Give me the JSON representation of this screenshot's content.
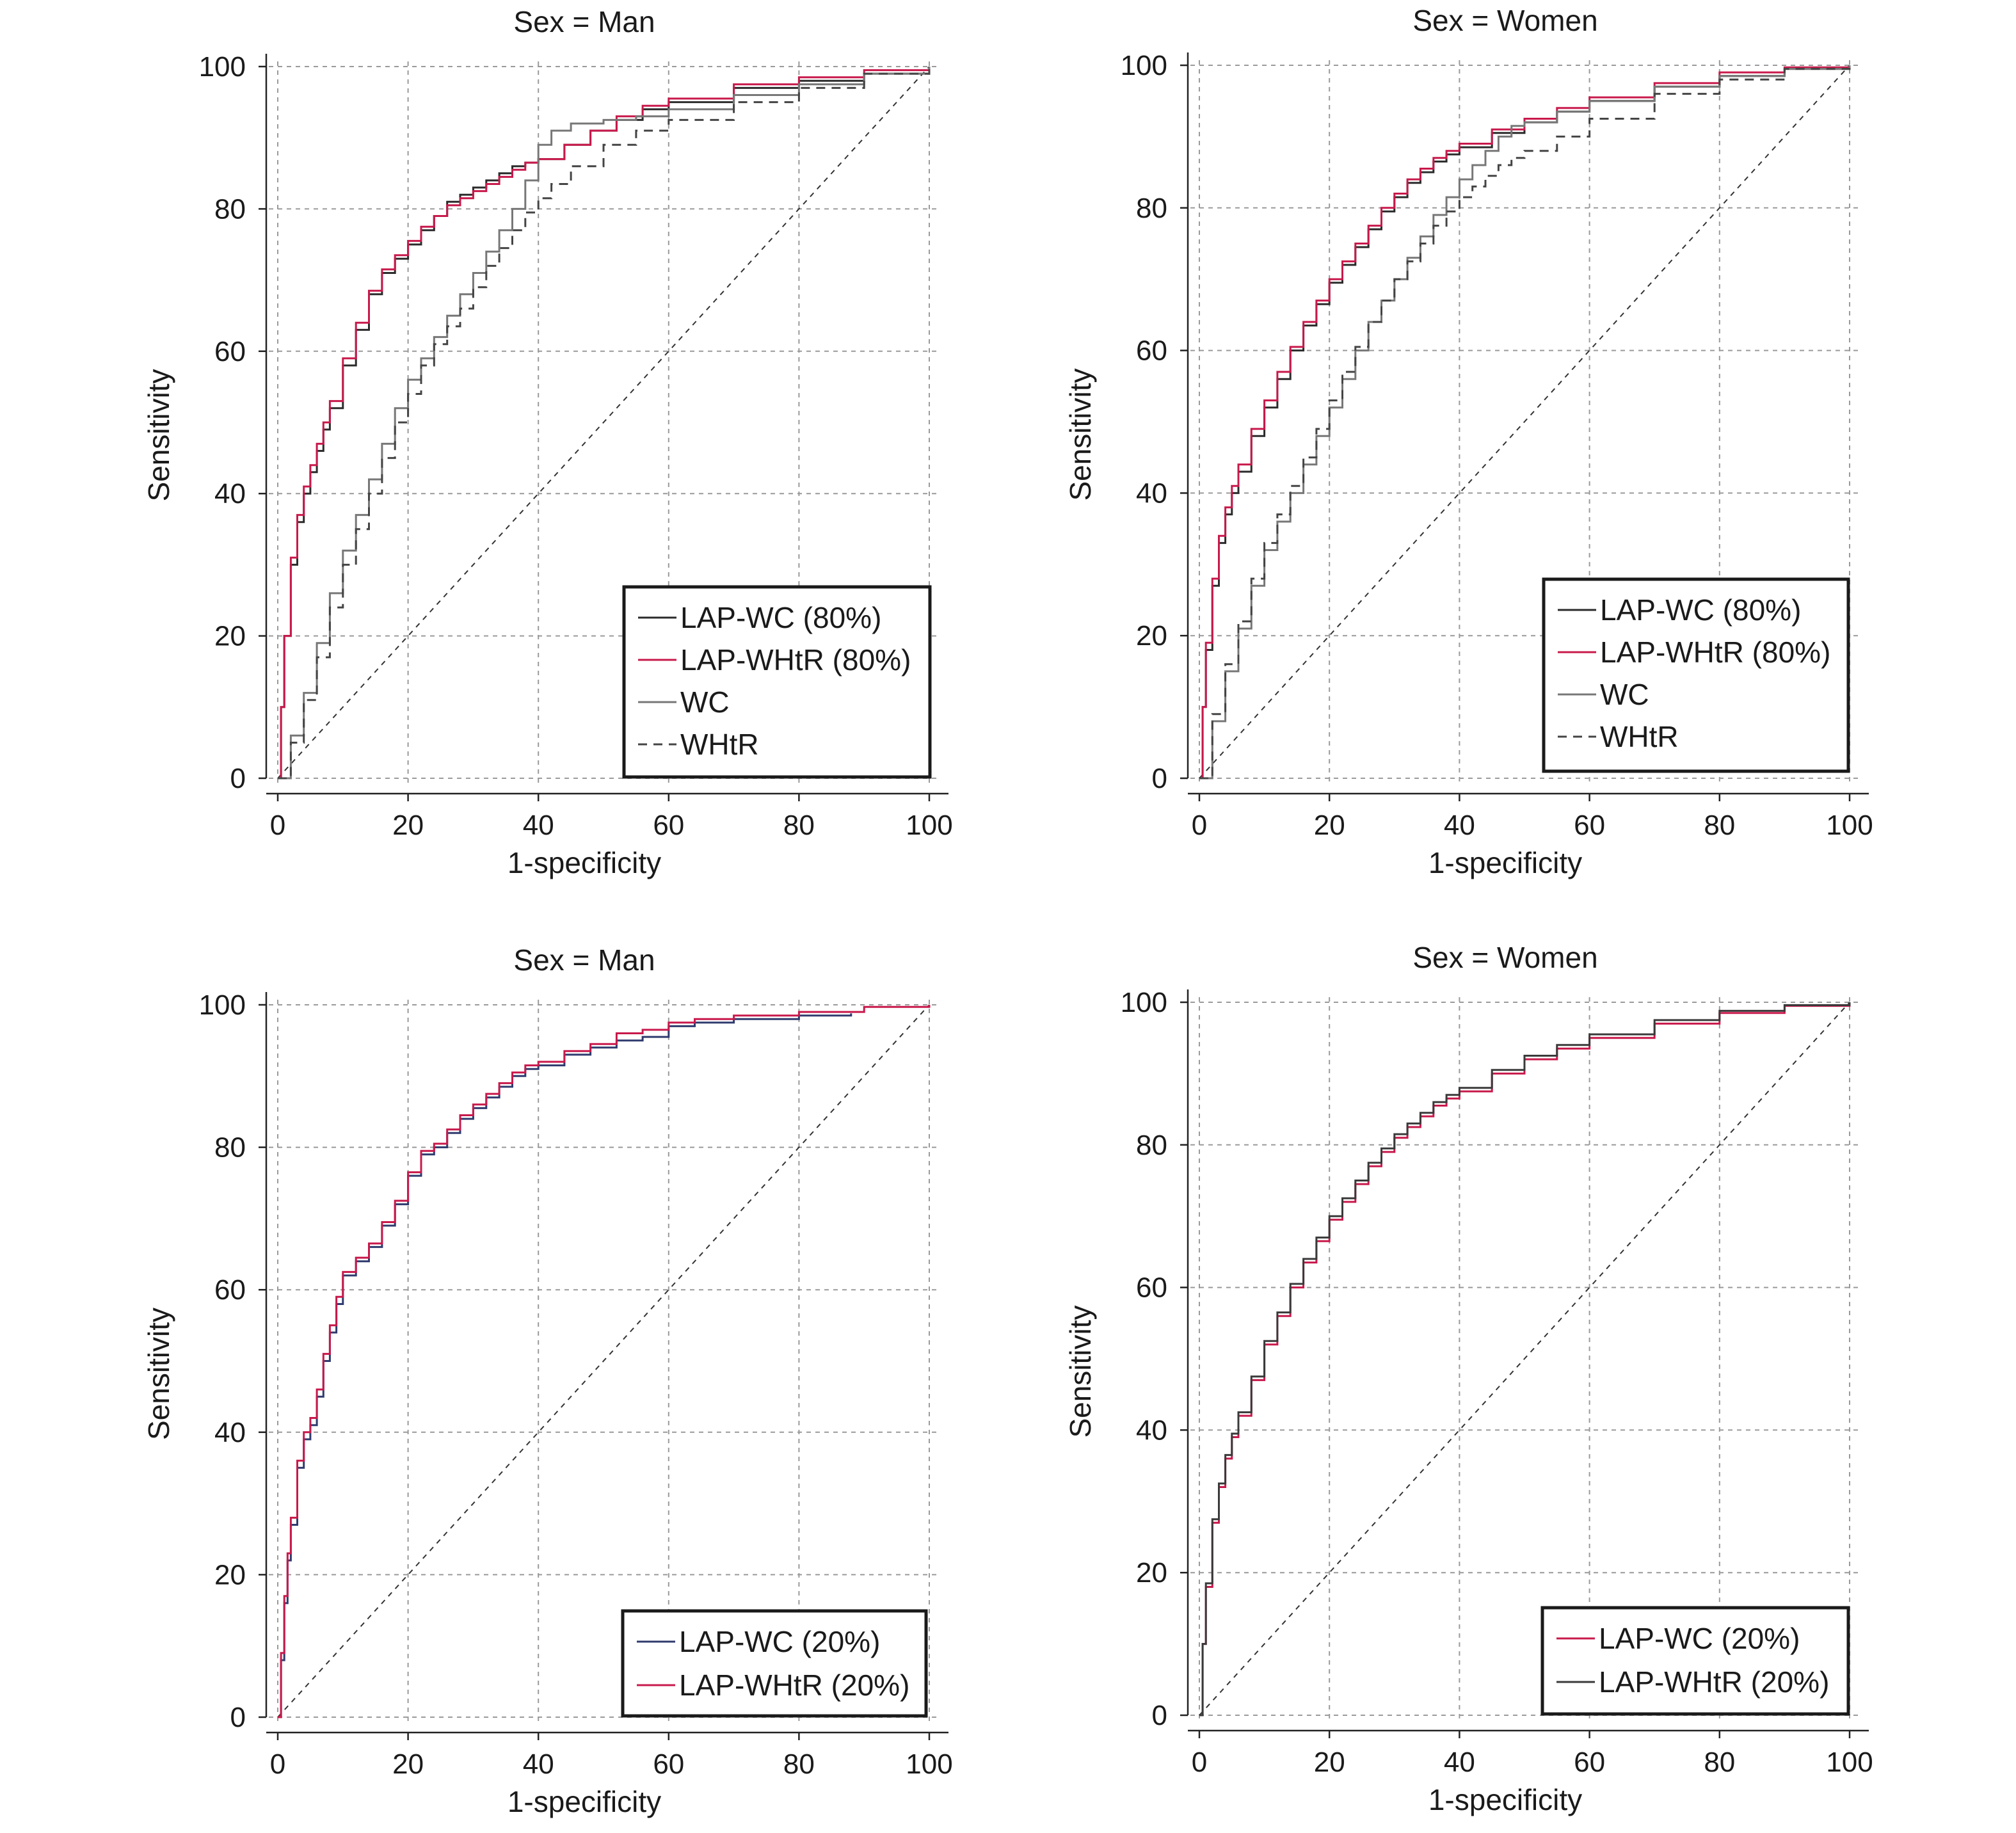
{
  "chart_data": [
    {
      "type": "line",
      "title": "Sex = Man",
      "xlabel": "1-specificity",
      "ylabel": "Sensitivity",
      "xlim": [
        0,
        100
      ],
      "ylim": [
        0,
        100
      ],
      "xticks": [
        0,
        20,
        40,
        60,
        80,
        100
      ],
      "yticks": [
        0,
        20,
        40,
        60,
        80,
        100
      ],
      "grid": true,
      "legend_position": "bottom-right",
      "reference_line": {
        "x": [
          0,
          100
        ],
        "y": [
          0,
          100
        ],
        "dash": "dashed",
        "color": "#333333"
      },
      "series": [
        {
          "name": "LAP-WC (80%)",
          "color": "#2b2b2b",
          "dash": "solid",
          "x": [
            0,
            0.5,
            1,
            2,
            3,
            4,
            5,
            6,
            7,
            8,
            10,
            12,
            14,
            16,
            18,
            20,
            22,
            24,
            26,
            28,
            30,
            32,
            34,
            36,
            38,
            40,
            44,
            48,
            52,
            56,
            60,
            70,
            80,
            90,
            100
          ],
          "y": [
            0,
            10,
            20,
            30,
            36,
            40,
            43,
            46,
            49,
            52,
            58,
            63,
            68,
            71,
            73,
            75,
            77,
            79,
            81,
            82,
            83,
            84,
            85,
            86,
            86.5,
            87,
            89,
            91,
            92.5,
            94,
            95,
            97,
            98,
            99,
            100
          ]
        },
        {
          "name": "LAP-WHtR (80%)",
          "color": "#c8194b",
          "dash": "solid",
          "x": [
            0,
            0.5,
            1,
            2,
            3,
            4,
            5,
            6,
            7,
            8,
            10,
            12,
            14,
            16,
            18,
            20,
            22,
            24,
            26,
            28,
            30,
            32,
            34,
            36,
            38,
            40,
            44,
            48,
            52,
            56,
            60,
            70,
            80,
            90,
            100
          ],
          "y": [
            0,
            10,
            20,
            31,
            37,
            41,
            44,
            47,
            50,
            53,
            59,
            64,
            68.5,
            71.5,
            73.5,
            75.5,
            77.5,
            79,
            80.5,
            81.5,
            82.5,
            83.5,
            84.5,
            85.5,
            86.5,
            87,
            89,
            91,
            93,
            94.5,
            95.5,
            97.5,
            98.5,
            99.5,
            100
          ]
        },
        {
          "name": "WC",
          "color": "#777777",
          "dash": "solid",
          "x": [
            0,
            2,
            4,
            6,
            8,
            10,
            12,
            14,
            16,
            18,
            20,
            22,
            24,
            26,
            28,
            30,
            32,
            34,
            36,
            38,
            40,
            42,
            45,
            50,
            55,
            60,
            70,
            80,
            90,
            100
          ],
          "y": [
            0,
            6,
            12,
            19,
            26,
            32,
            37,
            42,
            47,
            52,
            56,
            59,
            62,
            65,
            68,
            71,
            74,
            77,
            80,
            84,
            89,
            91,
            92,
            92.5,
            93,
            94,
            96,
            97.5,
            99,
            100
          ]
        },
        {
          "name": "WHtR",
          "color": "#444444",
          "dash": "dashed",
          "x": [
            0,
            2,
            4,
            6,
            8,
            10,
            12,
            14,
            16,
            18,
            20,
            22,
            24,
            26,
            28,
            30,
            32,
            34,
            36,
            38,
            40,
            42,
            45,
            50,
            55,
            60,
            70,
            80,
            90,
            100
          ],
          "y": [
            0,
            5,
            11,
            17,
            24,
            30,
            35,
            40,
            45,
            50,
            54,
            58,
            61,
            63.5,
            66,
            69,
            72,
            74.5,
            77,
            79.5,
            81.5,
            83.5,
            86,
            89,
            91,
            92.5,
            95,
            97,
            99,
            100
          ]
        }
      ],
      "legend": [
        "LAP-WC (80%)",
        "LAP-WHtR (80%)",
        "WC",
        "WHtR"
      ]
    },
    {
      "type": "line",
      "title": "Sex = Women",
      "xlabel": "1-specificity",
      "ylabel": "Sensitivity",
      "xlim": [
        0,
        100
      ],
      "ylim": [
        0,
        100
      ],
      "xticks": [
        0,
        20,
        40,
        60,
        80,
        100
      ],
      "yticks": [
        0,
        20,
        40,
        60,
        80,
        100
      ],
      "grid": true,
      "legend_position": "bottom-right",
      "reference_line": {
        "x": [
          0,
          100
        ],
        "y": [
          0,
          100
        ],
        "dash": "dashed",
        "color": "#333333"
      },
      "series": [
        {
          "name": "LAP-WC (80%)",
          "color": "#2b2b2b",
          "dash": "solid",
          "x": [
            0,
            0.5,
            1,
            2,
            3,
            4,
            5,
            6,
            8,
            10,
            12,
            14,
            16,
            18,
            20,
            22,
            24,
            26,
            28,
            30,
            32,
            34,
            36,
            38,
            40,
            45,
            50,
            55,
            60,
            70,
            80,
            90,
            100
          ],
          "y": [
            0,
            10,
            18,
            27,
            33,
            37,
            40,
            43,
            48,
            52,
            56,
            60,
            63.5,
            66.5,
            69.5,
            72,
            74.5,
            77,
            79.5,
            81.5,
            83.5,
            85,
            86.5,
            87.5,
            88.5,
            90.5,
            92,
            93.5,
            95,
            97,
            98.5,
            99.5,
            100
          ]
        },
        {
          "name": "LAP-WHtR (80%)",
          "color": "#c8194b",
          "dash": "solid",
          "x": [
            0,
            0.5,
            1,
            2,
            3,
            4,
            5,
            6,
            8,
            10,
            12,
            14,
            16,
            18,
            20,
            22,
            24,
            26,
            28,
            30,
            32,
            34,
            36,
            38,
            40,
            45,
            50,
            55,
            60,
            70,
            80,
            90,
            100
          ],
          "y": [
            0,
            10,
            19,
            28,
            34,
            38,
            41,
            44,
            49,
            53,
            57,
            60.5,
            64,
            67,
            70,
            72.5,
            75,
            77.5,
            80,
            82,
            84,
            85.5,
            87,
            88,
            89,
            91,
            92.5,
            94,
            95.5,
            97.5,
            99,
            99.7,
            100
          ]
        },
        {
          "name": "WC",
          "color": "#777777",
          "dash": "solid",
          "x": [
            0,
            2,
            4,
            6,
            8,
            10,
            12,
            14,
            16,
            18,
            20,
            22,
            24,
            26,
            28,
            30,
            32,
            34,
            36,
            38,
            40,
            42,
            44,
            46,
            48,
            50,
            55,
            60,
            70,
            80,
            90,
            100
          ],
          "y": [
            0,
            8,
            15,
            21,
            27,
            32,
            36,
            40,
            44,
            48,
            52,
            56,
            60,
            64,
            67,
            70,
            73,
            76,
            79,
            81.5,
            84,
            86,
            88,
            90,
            91.5,
            92,
            93.5,
            95,
            97,
            98.5,
            99.5,
            100
          ]
        },
        {
          "name": "WHtR",
          "color": "#444444",
          "dash": "dashed",
          "x": [
            0,
            2,
            4,
            6,
            8,
            10,
            12,
            14,
            16,
            18,
            20,
            22,
            24,
            26,
            28,
            30,
            32,
            34,
            36,
            38,
            40,
            42,
            44,
            46,
            48,
            50,
            55,
            60,
            70,
            80,
            90,
            100
          ],
          "y": [
            0,
            9,
            16,
            22,
            28,
            33,
            37,
            41,
            45,
            49,
            53,
            57,
            60.5,
            64,
            67,
            70,
            72.5,
            75,
            77.5,
            79.5,
            81.5,
            83,
            84.5,
            86,
            87,
            88,
            90,
            92.5,
            96,
            98,
            99.5,
            100
          ]
        }
      ],
      "legend": [
        "LAP-WC (80%)",
        "LAP-WHtR (80%)",
        "WC",
        "WHtR"
      ]
    },
    {
      "type": "line",
      "title": "Sex = Man",
      "xlabel": "1-specificity",
      "ylabel": "Sensitivity",
      "xlim": [
        0,
        100
      ],
      "ylim": [
        0,
        100
      ],
      "xticks": [
        0,
        20,
        40,
        60,
        80,
        100
      ],
      "yticks": [
        0,
        20,
        40,
        60,
        80,
        100
      ],
      "grid": true,
      "legend_position": "bottom-right",
      "reference_line": {
        "x": [
          0,
          100
        ],
        "y": [
          0,
          100
        ],
        "dash": "dashed",
        "color": "#333333"
      },
      "series": [
        {
          "name": "LAP-WC (20%)",
          "color": "#2f3b6e",
          "dash": "solid",
          "x": [
            0,
            0.5,
            1,
            1.5,
            2,
            3,
            4,
            5,
            6,
            7,
            8,
            9,
            10,
            12,
            14,
            16,
            18,
            20,
            22,
            24,
            26,
            28,
            30,
            32,
            34,
            36,
            38,
            40,
            44,
            48,
            52,
            56,
            60,
            64,
            70,
            80,
            88
          ],
          "y": [
            0,
            8,
            16,
            22,
            27,
            35,
            39,
            41,
            45,
            50,
            54,
            58,
            62,
            64,
            66,
            69,
            72,
            76,
            79,
            80,
            82,
            84,
            85.5,
            87,
            88.5,
            90,
            91,
            91.5,
            93,
            94,
            95,
            95.5,
            97,
            97.5,
            98,
            98.5,
            98.8
          ]
        },
        {
          "name": "LAP-WHtR (20%)",
          "color": "#c8194b",
          "dash": "solid",
          "x": [
            0,
            0.5,
            1,
            1.5,
            2,
            3,
            4,
            5,
            6,
            7,
            8,
            9,
            10,
            12,
            14,
            16,
            18,
            20,
            22,
            24,
            26,
            28,
            30,
            32,
            34,
            36,
            38,
            40,
            44,
            48,
            52,
            56,
            60,
            64,
            70,
            80,
            90,
            100
          ],
          "y": [
            0,
            9,
            17,
            23,
            28,
            36,
            40,
            42,
            46,
            51,
            55,
            59,
            62.5,
            64.5,
            66.5,
            69.5,
            72.5,
            76.5,
            79.5,
            80.5,
            82.5,
            84.5,
            86,
            87.5,
            89,
            90.5,
            91.5,
            92,
            93.5,
            94.5,
            96,
            96.5,
            97.5,
            98,
            98.5,
            99,
            99.7,
            100
          ]
        }
      ],
      "legend": [
        "LAP-WC (20%)",
        "LAP-WHtR (20%)"
      ]
    },
    {
      "type": "line",
      "title": "Sex = Women",
      "xlabel": "1-specificity",
      "ylabel": "Sensitivity",
      "xlim": [
        0,
        100
      ],
      "ylim": [
        0,
        100
      ],
      "xticks": [
        0,
        20,
        40,
        60,
        80,
        100
      ],
      "yticks": [
        0,
        20,
        40,
        60,
        80,
        100
      ],
      "grid": true,
      "legend_position": "bottom-right",
      "reference_line": {
        "x": [
          0,
          100
        ],
        "y": [
          0,
          100
        ],
        "dash": "dashed",
        "color": "#333333"
      },
      "series": [
        {
          "name": "LAP-WC (20%)",
          "color": "#c8194b",
          "dash": "solid",
          "x": [
            0,
            0.5,
            1,
            2,
            3,
            4,
            5,
            6,
            8,
            10,
            12,
            14,
            16,
            18,
            20,
            22,
            24,
            26,
            28,
            30,
            32,
            34,
            36,
            38,
            40,
            45,
            50,
            55,
            60,
            70,
            80,
            90,
            100
          ],
          "y": [
            0,
            10,
            18,
            27,
            32,
            36,
            39,
            42,
            47,
            52,
            56,
            60,
            63.5,
            66.5,
            69.5,
            72,
            74.5,
            77,
            79,
            81,
            82.5,
            84,
            85.5,
            86.5,
            87.5,
            90,
            92,
            93.5,
            95,
            97,
            98.5,
            99.5,
            100
          ]
        },
        {
          "name": "LAP-WHtR (20%)",
          "color": "#3a3a3a",
          "dash": "solid",
          "x": [
            0,
            0.5,
            1,
            2,
            3,
            4,
            5,
            6,
            8,
            10,
            12,
            14,
            16,
            18,
            20,
            22,
            24,
            26,
            28,
            30,
            32,
            34,
            36,
            38,
            40,
            45,
            50,
            55,
            60,
            70,
            80,
            90,
            100
          ],
          "y": [
            0,
            10,
            18.5,
            27.5,
            32.5,
            36.5,
            39.5,
            42.5,
            47.5,
            52.5,
            56.5,
            60.5,
            64,
            67,
            70,
            72.5,
            75,
            77.5,
            79.5,
            81.5,
            83,
            84.5,
            86,
            87,
            88,
            90.5,
            92.5,
            94,
            95.5,
            97.5,
            98.8,
            99.6,
            100
          ]
        }
      ],
      "legend": [
        "LAP-WC (20%)",
        "LAP-WHtR (20%)"
      ]
    }
  ]
}
